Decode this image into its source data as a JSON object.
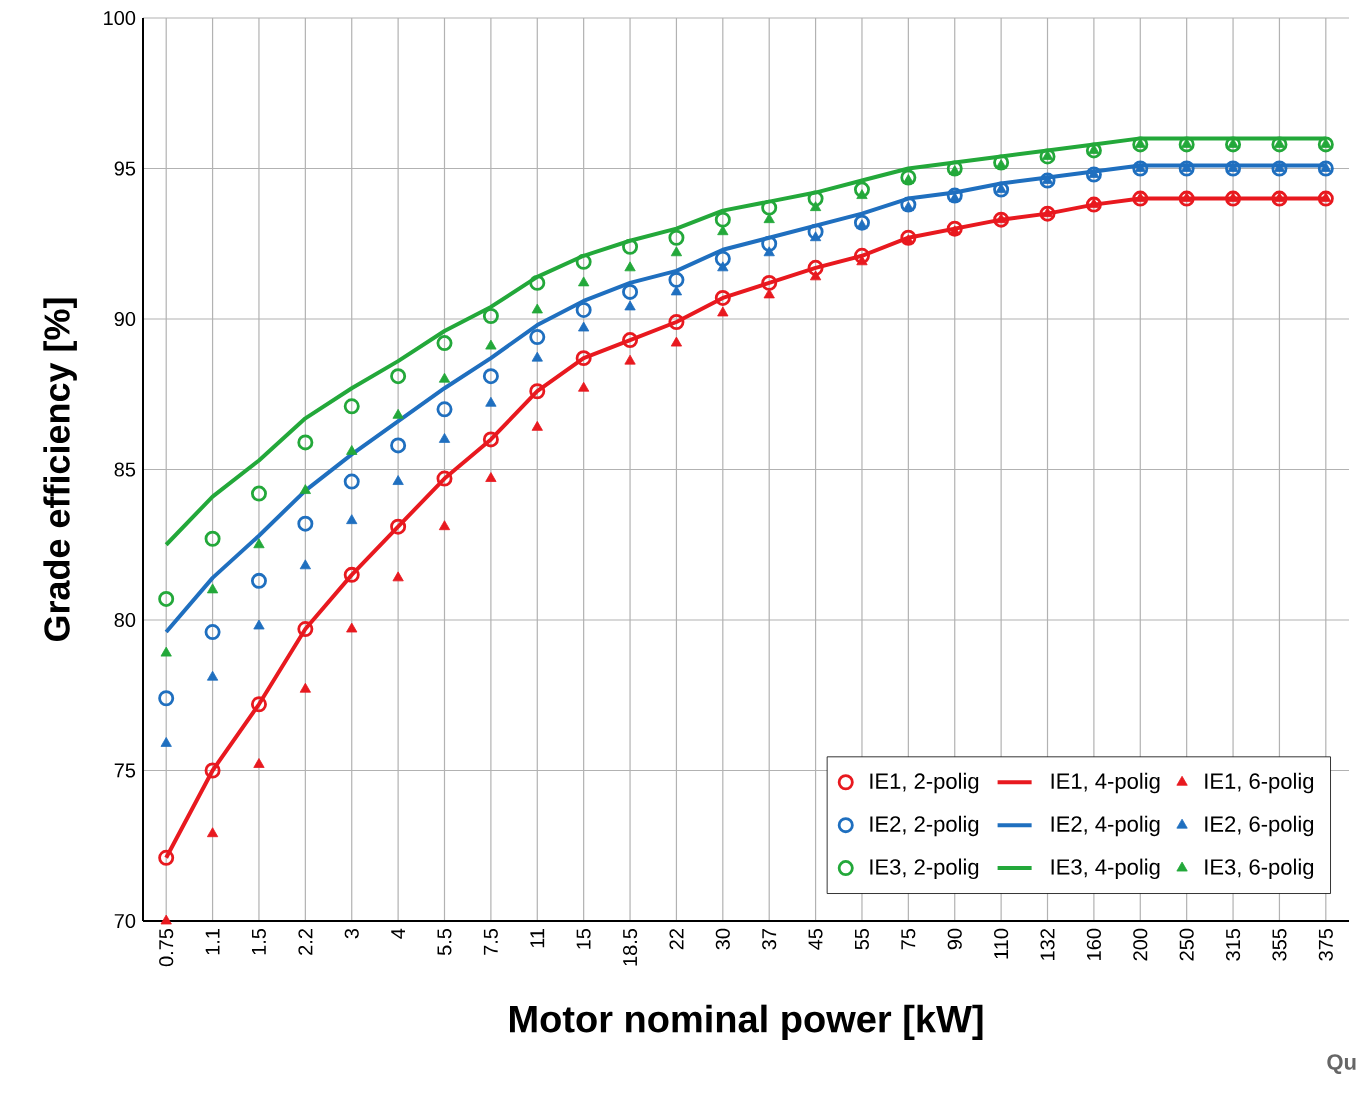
{
  "chart_data": {
    "type": "line",
    "xlabel": "Motor nominal power [kW]",
    "ylabel": "Grade efficiency [%]",
    "categories": [
      "0.75",
      "1.1",
      "1.5",
      "2.2",
      "3",
      "4",
      "5.5",
      "7.5",
      "11",
      "15",
      "18.5",
      "22",
      "30",
      "37",
      "45",
      "55",
      "75",
      "90",
      "110",
      "132",
      "160",
      "200",
      "250",
      "315",
      "355",
      "375"
    ],
    "ylim": [
      70,
      100
    ],
    "yticks": [
      70,
      75,
      80,
      85,
      90,
      95,
      100
    ],
    "grid": true,
    "legend": "bottom right",
    "annotations": [
      "Qu"
    ],
    "series": [
      {
        "name": "IE1, 2-polig",
        "type": "scatter",
        "marker": "circle",
        "color": "#e8191f",
        "values": [
          72.1,
          75.0,
          77.2,
          79.7,
          81.5,
          83.1,
          84.7,
          86.0,
          87.6,
          88.7,
          89.3,
          89.9,
          90.7,
          91.2,
          91.7,
          92.1,
          92.7,
          93.0,
          93.3,
          93.5,
          93.8,
          94.0,
          94.0,
          94.0,
          94.0,
          94.0
        ]
      },
      {
        "name": "IE1, 4-polig",
        "type": "line",
        "color": "#e8191f",
        "values": [
          72.1,
          75.0,
          77.2,
          79.7,
          81.5,
          83.1,
          84.7,
          86.0,
          87.6,
          88.7,
          89.3,
          89.9,
          90.7,
          91.2,
          91.7,
          92.1,
          92.7,
          93.0,
          93.3,
          93.5,
          93.8,
          94.0,
          94.0,
          94.0,
          94.0,
          94.0
        ]
      },
      {
        "name": "IE1, 6-polig",
        "type": "scatter",
        "marker": "triangle",
        "color": "#e8191f",
        "values": [
          70.0,
          72.9,
          75.2,
          77.7,
          79.7,
          81.4,
          83.1,
          84.7,
          86.4,
          87.7,
          88.6,
          89.2,
          90.2,
          90.8,
          91.4,
          91.9,
          92.6,
          92.9,
          93.3,
          93.5,
          93.8,
          94.0,
          94.0,
          94.0,
          94.0,
          94.0
        ]
      },
      {
        "name": "IE2, 2-polig",
        "type": "scatter",
        "marker": "circle",
        "color": "#1f6fbf",
        "values": [
          77.4,
          79.6,
          81.3,
          83.2,
          84.6,
          85.8,
          87.0,
          88.1,
          89.4,
          90.3,
          90.9,
          91.3,
          92.0,
          92.5,
          92.9,
          93.2,
          93.8,
          94.1,
          94.3,
          94.6,
          94.8,
          95.0,
          95.0,
          95.0,
          95.0,
          95.0
        ]
      },
      {
        "name": "IE2, 4-polig",
        "type": "line",
        "color": "#1f6fbf",
        "values": [
          79.6,
          81.4,
          82.8,
          84.3,
          85.5,
          86.6,
          87.7,
          88.7,
          89.8,
          90.6,
          91.2,
          91.6,
          92.3,
          92.7,
          93.1,
          93.5,
          94.0,
          94.2,
          94.5,
          94.7,
          94.9,
          95.1,
          95.1,
          95.1,
          95.1,
          95.1
        ]
      },
      {
        "name": "IE2, 6-polig",
        "type": "scatter",
        "marker": "triangle",
        "color": "#1f6fbf",
        "values": [
          75.9,
          78.1,
          79.8,
          81.8,
          83.3,
          84.6,
          86.0,
          87.2,
          88.7,
          89.7,
          90.4,
          90.9,
          91.7,
          92.2,
          92.7,
          93.1,
          93.7,
          94.0,
          94.3,
          94.6,
          94.8,
          95.0,
          95.0,
          95.0,
          95.0,
          95.0
        ]
      },
      {
        "name": "IE3, 2-polig",
        "type": "scatter",
        "marker": "circle",
        "color": "#23a83a",
        "values": [
          80.7,
          82.7,
          84.2,
          85.9,
          87.1,
          88.1,
          89.2,
          90.1,
          91.2,
          91.9,
          92.4,
          92.7,
          93.3,
          93.7,
          94.0,
          94.3,
          94.7,
          95.0,
          95.2,
          95.4,
          95.6,
          95.8,
          95.8,
          95.8,
          95.8,
          95.8
        ]
      },
      {
        "name": "IE3, 4-polig",
        "type": "line",
        "color": "#23a83a",
        "values": [
          82.5,
          84.1,
          85.3,
          86.7,
          87.7,
          88.6,
          89.6,
          90.4,
          91.4,
          92.1,
          92.6,
          93.0,
          93.6,
          93.9,
          94.2,
          94.6,
          95.0,
          95.2,
          95.4,
          95.6,
          95.8,
          96.0,
          96.0,
          96.0,
          96.0,
          96.0
        ]
      },
      {
        "name": "IE3, 6-polig",
        "type": "scatter",
        "marker": "triangle",
        "color": "#23a83a",
        "values": [
          78.9,
          81.0,
          82.5,
          84.3,
          85.6,
          86.8,
          88.0,
          89.1,
          90.3,
          91.2,
          91.7,
          92.2,
          92.9,
          93.3,
          93.7,
          94.1,
          94.6,
          94.9,
          95.1,
          95.4,
          95.6,
          95.8,
          95.8,
          95.8,
          95.8,
          95.8
        ]
      }
    ]
  }
}
